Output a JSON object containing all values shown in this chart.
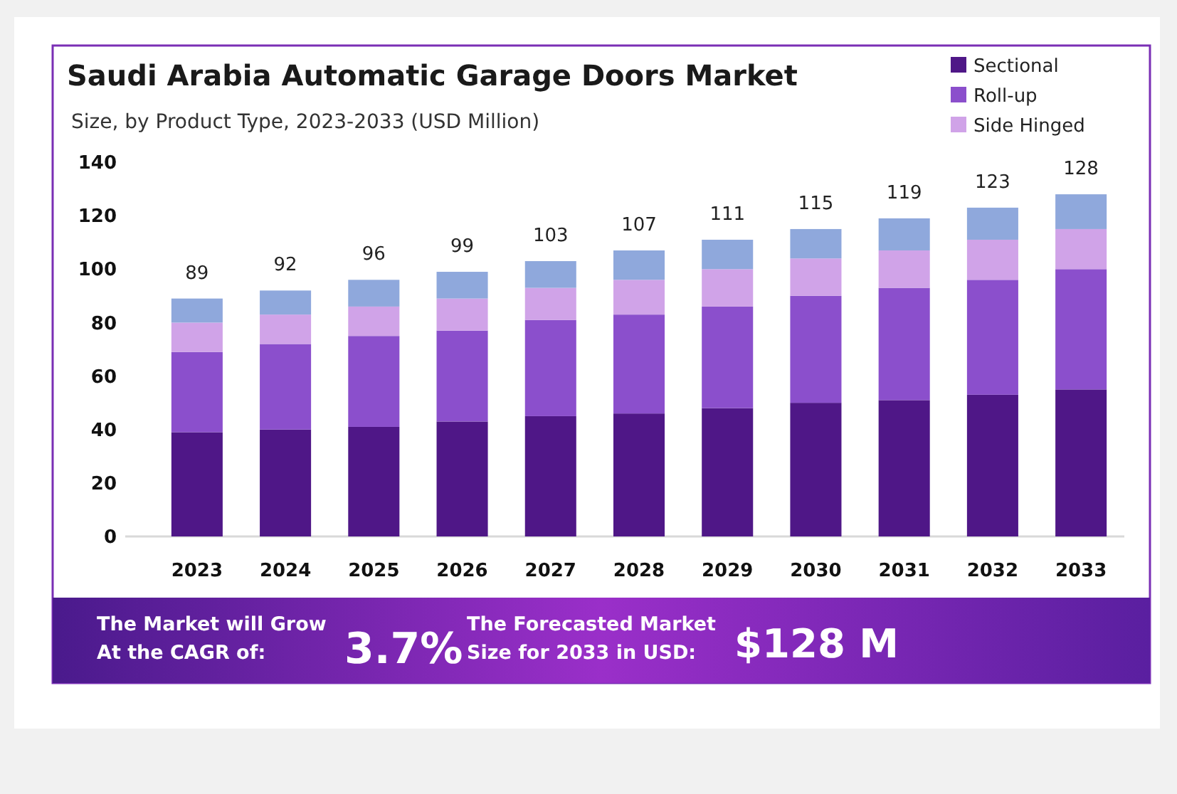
{
  "chart_data": {
    "type": "bar",
    "title": "Saudi Arabia Automatic Garage Doors Market",
    "subtitle": "Size, by Product Type, 2023-2033 (USD Million)",
    "categories": [
      "2023",
      "2024",
      "2025",
      "2026",
      "2027",
      "2028",
      "2029",
      "2030",
      "2031",
      "2032",
      "2033"
    ],
    "series": [
      {
        "name": "Sectional",
        "color": "#4f1787",
        "values": [
          39,
          40,
          41,
          43,
          45,
          46,
          48,
          50,
          51,
          53,
          55
        ]
      },
      {
        "name": "Roll-up",
        "color": "#8b4fcc",
        "values": [
          30,
          32,
          34,
          34,
          36,
          37,
          38,
          40,
          42,
          43,
          45
        ]
      },
      {
        "name": "Side Hinged",
        "color": "#d0a3e8",
        "values": [
          11,
          11,
          11,
          12,
          12,
          13,
          14,
          14,
          14,
          15,
          15
        ]
      },
      {
        "color": "#8fa8dc",
        "values": [
          9,
          9,
          10,
          10,
          10,
          11,
          11,
          11,
          12,
          12,
          13
        ]
      }
    ],
    "stacked": true,
    "totals": [
      "89",
      "92",
      "96",
      "99",
      "103",
      "107",
      "111",
      "115",
      "119",
      "123",
      "128"
    ],
    "ylim": [
      0,
      140
    ],
    "yticks": [
      0,
      20,
      40,
      60,
      80,
      100,
      120,
      140
    ],
    "grid": false,
    "legend": "top right",
    "annotations": [
      "The Market will Grow At the CAGR of:",
      "3.7%",
      "The Forecasted Market Size for 2033 in USD:",
      "$128 M"
    ]
  }
}
